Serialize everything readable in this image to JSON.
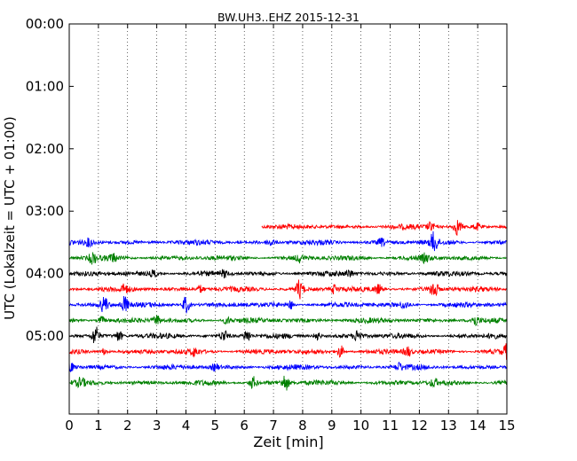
{
  "chart_data": {
    "type": "line",
    "title": "BW.UH3..EHZ 2015-12-31",
    "xlabel": "Zeit  [min]",
    "ylabel": "UTC (Lokalzeit = UTC + 01:00)",
    "xlim": [
      0,
      15
    ],
    "ylim_minutes": [
      0,
      375
    ],
    "y_inverted": true,
    "grid": "vertical dotted at every minute",
    "x_ticks": [
      "0",
      "1",
      "2",
      "3",
      "4",
      "5",
      "6",
      "7",
      "8",
      "9",
      "10",
      "11",
      "12",
      "13",
      "14",
      "15"
    ],
    "y_ticks": [
      {
        "label": "00:00",
        "minutes": 0
      },
      {
        "label": "01:00",
        "minutes": 60
      },
      {
        "label": "02:00",
        "minutes": 120
      },
      {
        "label": "03:00",
        "minutes": 180
      },
      {
        "label": "04:00",
        "minutes": 240
      },
      {
        "label": "05:00",
        "minutes": 300
      }
    ],
    "colors": [
      "#ff0000",
      "#0000ff",
      "#008000",
      "#000000"
    ],
    "traces": [
      {
        "start_minutes": 195,
        "x_start": 6.6,
        "x_end": 15,
        "color": "#ff0000",
        "events": [
          [
            12.4,
            2.0
          ],
          [
            13.3,
            3.2
          ],
          [
            14.0,
            1.3
          ]
        ]
      },
      {
        "start_minutes": 210,
        "x_start": 0,
        "x_end": 15,
        "color": "#0000ff",
        "events": [
          [
            0.7,
            1.5
          ],
          [
            6.9,
            1.6
          ],
          [
            10.7,
            1.4
          ],
          [
            12.5,
            4.2
          ]
        ]
      },
      {
        "start_minutes": 225,
        "x_start": 0,
        "x_end": 15,
        "color": "#008000",
        "events": [
          [
            0.8,
            2.3
          ],
          [
            1.5,
            1.4
          ],
          [
            7.9,
            1.4
          ],
          [
            12.2,
            1.5
          ]
        ]
      },
      {
        "start_minutes": 240,
        "x_start": 0,
        "x_end": 15,
        "color": "#000000",
        "events": [
          [
            2.9,
            1.4
          ],
          [
            5.3,
            1.3
          ],
          [
            9.6,
            1.6
          ]
        ]
      },
      {
        "start_minutes": 255,
        "x_start": 0,
        "x_end": 15,
        "color": "#ff0000",
        "events": [
          [
            1.9,
            1.6
          ],
          [
            4.5,
            1.6
          ],
          [
            7.9,
            4.0
          ],
          [
            9.1,
            1.8
          ],
          [
            10.6,
            1.8
          ],
          [
            12.5,
            4.2
          ]
        ]
      },
      {
        "start_minutes": 270,
        "x_start": 0,
        "x_end": 15,
        "color": "#0000ff",
        "events": [
          [
            1.2,
            3.5
          ],
          [
            1.9,
            3.5
          ],
          [
            4.0,
            3.8
          ],
          [
            7.6,
            1.6
          ],
          [
            11.5,
            1.5
          ]
        ]
      },
      {
        "start_minutes": 285,
        "x_start": 0,
        "x_end": 15,
        "color": "#008000",
        "events": [
          [
            1.1,
            1.7
          ],
          [
            3.0,
            2.0
          ],
          [
            5.4,
            1.4
          ],
          [
            13.9,
            2.0
          ]
        ]
      },
      {
        "start_minutes": 300,
        "x_start": 0,
        "x_end": 15,
        "color": "#000000",
        "events": [
          [
            0.9,
            4.0
          ],
          [
            1.7,
            2.2
          ],
          [
            5.3,
            2.2
          ],
          [
            6.1,
            2.5
          ],
          [
            8.5,
            1.8
          ],
          [
            9.9,
            2.8
          ],
          [
            14.5,
            1.5
          ]
        ]
      },
      {
        "start_minutes": 315,
        "x_start": 0,
        "x_end": 15,
        "color": "#ff0000",
        "events": [
          [
            1.2,
            1.4
          ],
          [
            4.3,
            1.6
          ],
          [
            9.3,
            2.6
          ],
          [
            11.6,
            2.0
          ],
          [
            15.0,
            2.6
          ]
        ]
      },
      {
        "start_minutes": 330,
        "x_start": 0,
        "x_end": 15,
        "color": "#0000ff",
        "events": [
          [
            0.0,
            2.8
          ],
          [
            5.0,
            1.4
          ],
          [
            11.3,
            1.5
          ]
        ]
      },
      {
        "start_minutes": 345,
        "x_start": 0,
        "x_end": 15,
        "color": "#008000",
        "events": [
          [
            0.4,
            1.6
          ],
          [
            6.3,
            2.5
          ],
          [
            7.4,
            3.5
          ],
          [
            12.5,
            1.4
          ]
        ]
      }
    ]
  }
}
